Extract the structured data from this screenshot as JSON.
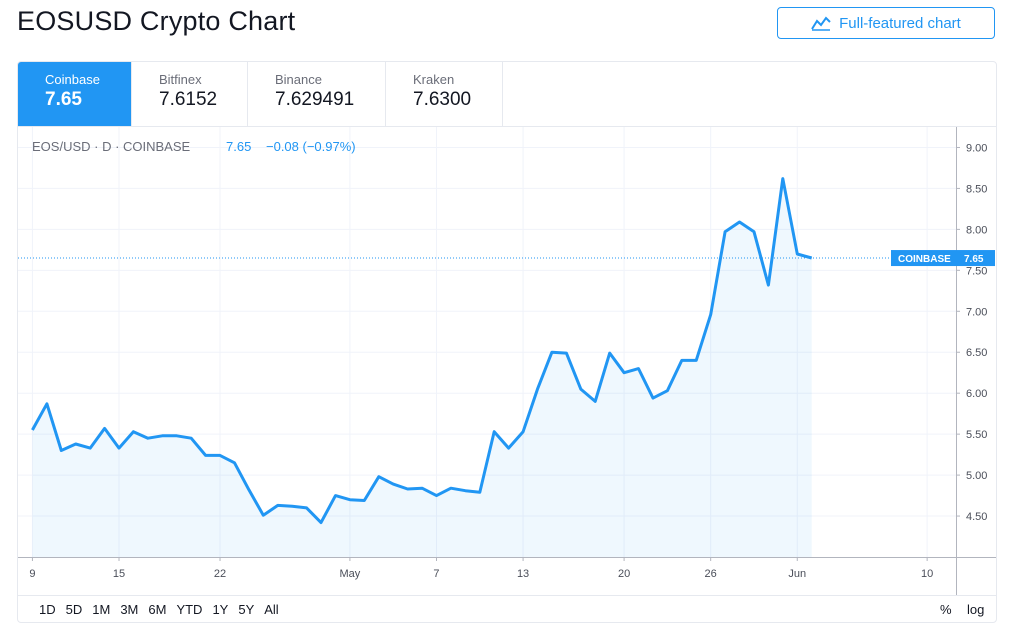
{
  "page": {
    "title": "EOSUSD Crypto Chart"
  },
  "full_button": {
    "label": "Full-featured chart",
    "icon": "chart-line-icon",
    "color": "#2196f3"
  },
  "tabs": [
    {
      "exchange": "Coinbase",
      "price": "7.65",
      "active": true
    },
    {
      "exchange": "Bitfinex",
      "price": "7.6152",
      "active": false
    },
    {
      "exchange": "Binance",
      "price": "7.629491",
      "active": false
    },
    {
      "exchange": "Kraken",
      "price": "7.6300",
      "active": false
    }
  ],
  "legend": {
    "symbol": "EOS/USD · D · COINBASE",
    "last": "7.65",
    "change": "−0.08 (−0.97%)"
  },
  "price_tag": {
    "label": "COINBASE",
    "value": "7.65"
  },
  "time_ranges": [
    "1D",
    "5D",
    "1M",
    "3M",
    "6M",
    "YTD",
    "1Y",
    "5Y",
    "All"
  ],
  "scale_buttons": {
    "percent": "%",
    "log": "log"
  },
  "colors": {
    "accent": "#2196f3",
    "grid": "#f0f3fa",
    "axis_text": "#4a4e59"
  },
  "chart_data": {
    "type": "area",
    "ylim": [
      4.0,
      9.25
    ],
    "yticks": [
      "4.50",
      "5.00",
      "5.50",
      "6.00",
      "6.50",
      "7.00",
      "7.50",
      "8.00",
      "8.50",
      "9.00"
    ],
    "xticks": [
      {
        "label": "9",
        "day": 0
      },
      {
        "label": "15",
        "day": 6
      },
      {
        "label": "22",
        "day": 13
      },
      {
        "label": "May",
        "day": 22
      },
      {
        "label": "7",
        "day": 28
      },
      {
        "label": "13",
        "day": 34
      },
      {
        "label": "20",
        "day": 41
      },
      {
        "label": "26",
        "day": 47
      },
      {
        "label": "Jun",
        "day": 53
      },
      {
        "label": "10",
        "day": 62
      }
    ],
    "x_range_days": [
      -1,
      64
    ],
    "series": [
      {
        "values": [
          5.55,
          5.87,
          5.3,
          5.38,
          5.33,
          5.57,
          5.33,
          5.53,
          5.45,
          5.48,
          5.48,
          5.45,
          5.24,
          5.24,
          5.15,
          4.82,
          4.51,
          4.63,
          4.62,
          4.6,
          4.42,
          4.75,
          4.7,
          4.69,
          4.98,
          4.89,
          4.83,
          4.84,
          4.75,
          4.84,
          4.81,
          4.79,
          5.53,
          5.33,
          5.53,
          6.05,
          6.5,
          6.49,
          6.05,
          5.9,
          6.49,
          6.25,
          6.3,
          5.94,
          6.03,
          6.4,
          6.4,
          6.96,
          7.97,
          8.09,
          7.97,
          7.32,
          8.62,
          7.7,
          7.65
        ],
        "last": 7.65
      }
    ]
  }
}
